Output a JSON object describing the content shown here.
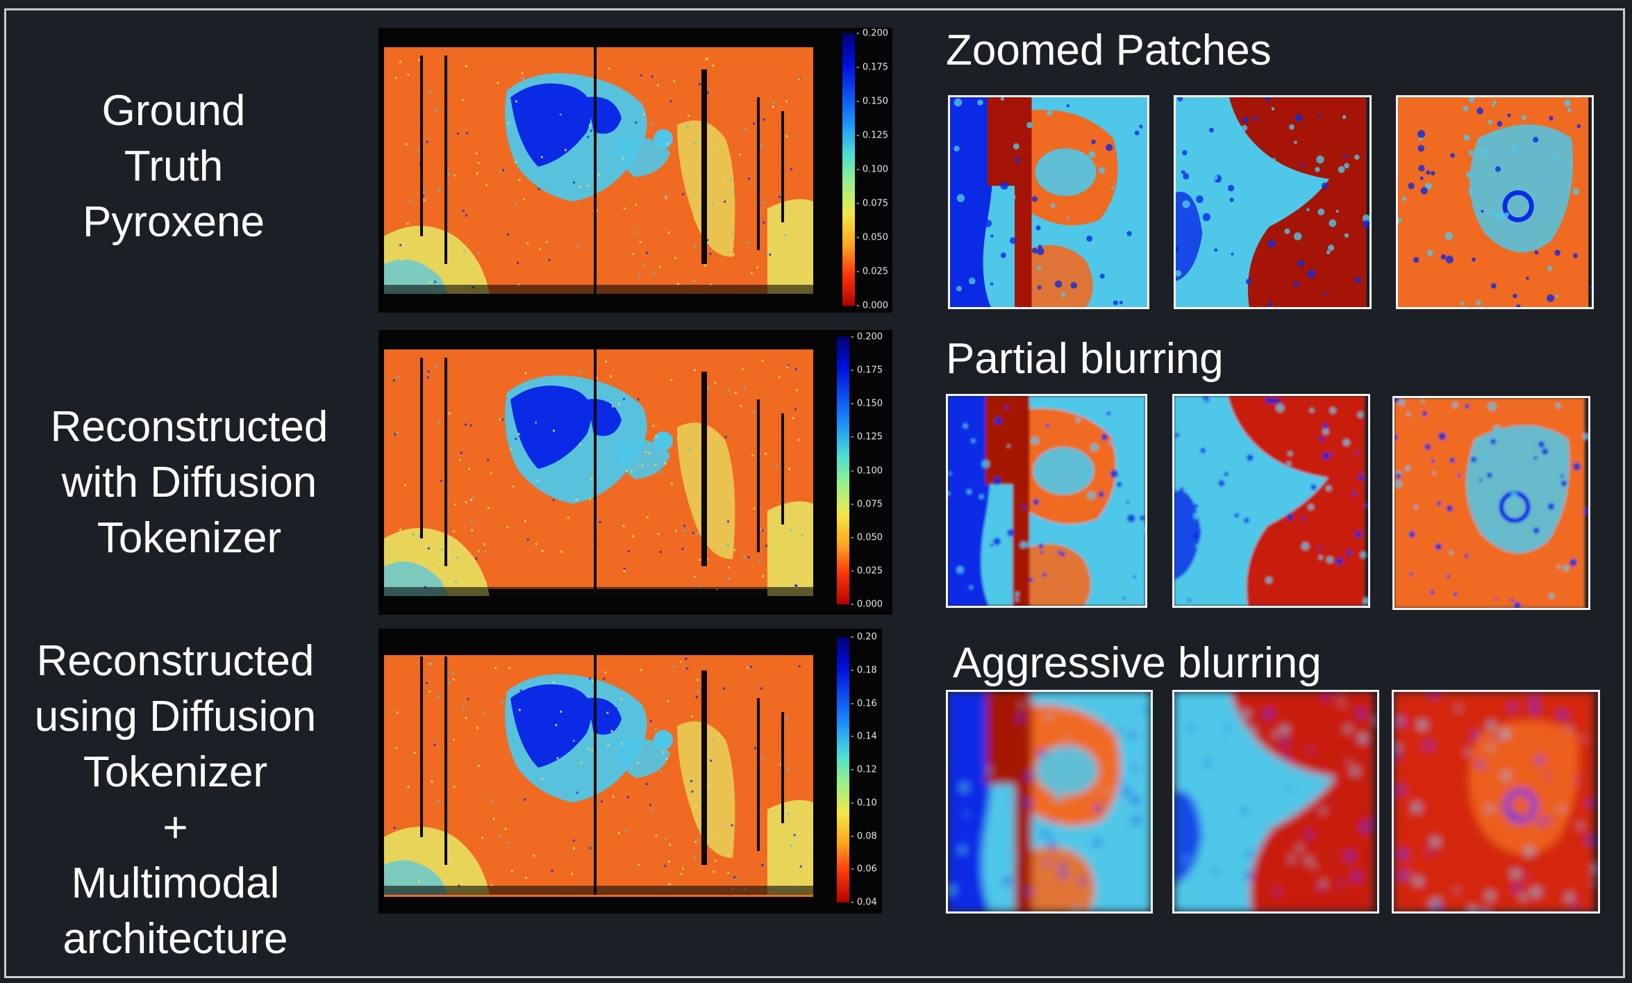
{
  "rows": [
    {
      "id": "ground-truth",
      "label_lines": [
        "Ground",
        "Truth",
        "Pyroxene"
      ],
      "colorbar_ticks": [
        "0.200",
        "0.175",
        "0.150",
        "0.125",
        "0.100",
        "0.075",
        "0.050",
        "0.025",
        "0.000"
      ]
    },
    {
      "id": "diffusion-tokenizer",
      "label_lines": [
        "Reconstructed",
        "with Diffusion",
        "Tokenizer"
      ],
      "colorbar_ticks": [
        "0.200",
        "0.175",
        "0.150",
        "0.125",
        "0.100",
        "0.075",
        "0.050",
        "0.025",
        "0.000"
      ]
    },
    {
      "id": "multimodal",
      "label_lines": [
        "Reconstructed",
        "using Diffusion",
        "Tokenizer",
        "+",
        "Multimodal",
        "architecture"
      ],
      "colorbar_ticks": [
        "0.20",
        "0.18",
        "0.16",
        "0.14",
        "0.12",
        "0.10",
        "0.08",
        "0.06",
        "0.04"
      ]
    }
  ],
  "sections": {
    "zoomed": "Zoomed Patches",
    "partial": "Partial blurring",
    "aggressive": "Aggressive blurring"
  },
  "colors": {
    "background": "#1b1f26",
    "map_orange": "#f06a22",
    "map_blue": "#0a2ae6",
    "map_cyan": "#4fc7e8",
    "map_yellow": "#e8e060",
    "map_darkred": "#a51406"
  }
}
